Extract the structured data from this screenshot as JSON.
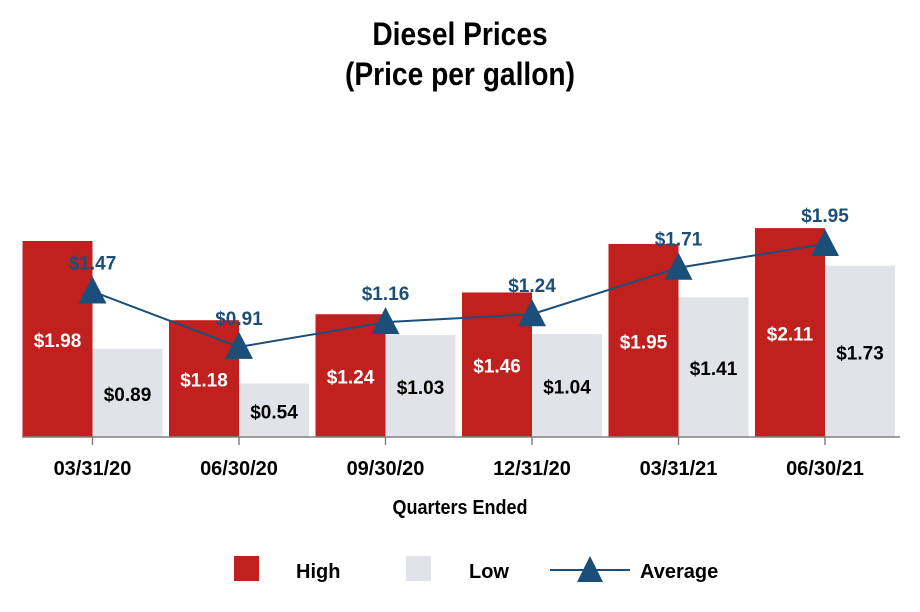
{
  "chart_data": {
    "type": "bar",
    "title": "Diesel Prices",
    "subtitle": "(Price per gallon)",
    "xlabel": "Quarters Ended",
    "ylabel": "",
    "categories": [
      "03/31/20",
      "06/30/20",
      "09/30/20",
      "12/31/20",
      "03/31/21",
      "06/30/21"
    ],
    "series": [
      {
        "name": "High",
        "kind": "bar",
        "color": "#C0201E",
        "values": [
          1.98,
          1.18,
          1.24,
          1.46,
          1.95,
          2.11
        ],
        "labels": [
          "$1.98",
          "$1.18",
          "$1.24",
          "$1.46",
          "$1.95",
          "$2.11"
        ]
      },
      {
        "name": "Low",
        "kind": "bar",
        "color": "#E2E3E8",
        "values": [
          0.89,
          0.54,
          1.03,
          1.04,
          1.41,
          1.73
        ],
        "labels": [
          "$0.89",
          "$0.54",
          "$1.03",
          "$1.04",
          "$1.41",
          "$1.73"
        ]
      },
      {
        "name": "Average",
        "kind": "line",
        "color": "#1B4F7A",
        "values": [
          1.47,
          0.91,
          1.16,
          1.24,
          1.71,
          1.95
        ],
        "labels": [
          "$1.47",
          "$0.91",
          "$1.16",
          "$1.24",
          "$1.71",
          "$1.95"
        ]
      }
    ],
    "ylim": [
      0,
      2.2
    ],
    "grid": false,
    "legend": "bottom",
    "legend_items": [
      "High",
      "Low",
      "Average"
    ]
  }
}
